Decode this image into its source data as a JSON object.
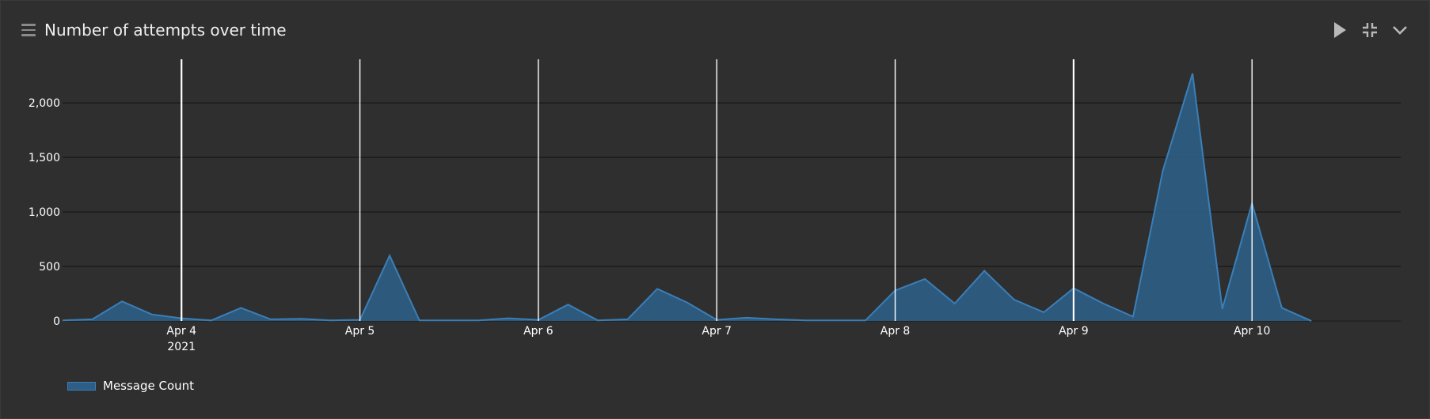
{
  "panel": {
    "title": "Number of attempts over time",
    "menu_icon": "hamburger-menu-icon",
    "buttons": [
      {
        "name": "play-button",
        "icon": "play-icon"
      },
      {
        "name": "fullscreen-exit-button",
        "icon": "compress-arrows-icon"
      },
      {
        "name": "collapse-button",
        "icon": "chevron-down-icon"
      }
    ]
  },
  "colors": {
    "background": "#2f2f2f",
    "series_fill": "#2e5e86",
    "series_line": "#3a7fb8",
    "grid": "#111111",
    "text": "#ffffff"
  },
  "legend": {
    "label": "Message Count"
  },
  "chart_data": {
    "type": "area",
    "title": "Number of attempts over time",
    "xlabel": "",
    "ylabel": "",
    "x_unit": "datetime (4-hour buckets, 2021)",
    "x_start": "2021-04-03T08:00",
    "x_step_hours": 4,
    "x_tick_labels": [
      "Apr 4",
      "Apr 5",
      "Apr 6",
      "Apr 7",
      "Apr 8",
      "Apr 9",
      "Apr 10"
    ],
    "x_tick_dates": [
      "2021-04-04",
      "2021-04-05",
      "2021-04-06",
      "2021-04-07",
      "2021-04-08",
      "2021-04-09",
      "2021-04-10"
    ],
    "x_tick_sublabel": "2021",
    "xlim": [
      "2021-04-03T08:00",
      "2021-04-10T20:00"
    ],
    "ylim": [
      0,
      2400
    ],
    "y_ticks": [
      0,
      500,
      1000,
      1500,
      2000
    ],
    "y_tick_labels": [
      "0",
      "500",
      "1,000",
      "1,500",
      "2,000"
    ],
    "grid": true,
    "legend_position": "bottom-left",
    "series": [
      {
        "name": "Message Count",
        "values": [
          5,
          15,
          180,
          60,
          25,
          5,
          120,
          15,
          20,
          5,
          10,
          600,
          5,
          5,
          5,
          25,
          10,
          150,
          5,
          15,
          295,
          170,
          10,
          30,
          15,
          5,
          5,
          5,
          280,
          385,
          160,
          460,
          195,
          80,
          300,
          160,
          40,
          1380,
          2270,
          110,
          1080,
          120,
          0
        ]
      }
    ]
  }
}
